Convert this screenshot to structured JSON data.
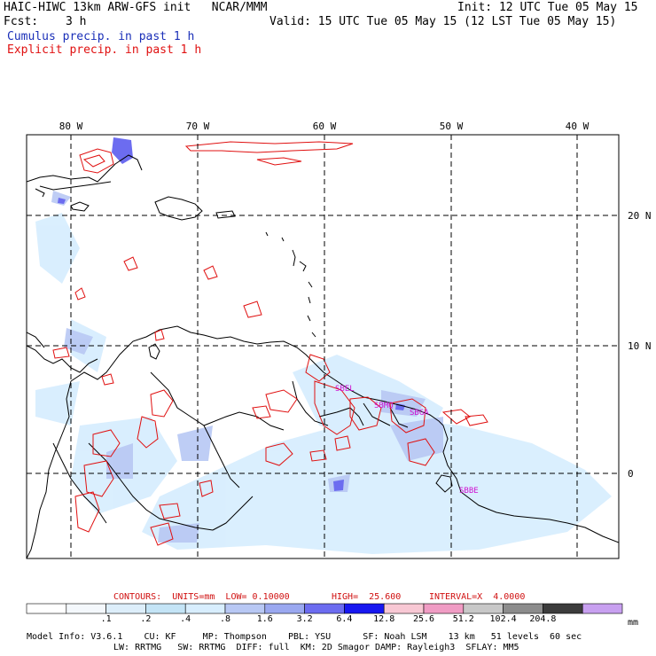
{
  "header": {
    "title": "HAIC-HIWC 13km ARW-GFS init   NCAR/MMM",
    "fcst_label": "Fcst:",
    "fcst_value": "3 h",
    "init": "Init: 12 UTC Tue 05 May 15",
    "valid": "Valid: 15 UTC Tue 05 May 15 (12 LST Tue 05 May 15)",
    "legend_cumulus": "Cumulus precip. in past 1 h",
    "legend_explicit": "Explicit precip. in past 1 h"
  },
  "colors": {
    "cumulus": "#1a2fb8",
    "explicit": "#e01010",
    "label": "#d010d0",
    "contour_text": "#d01010"
  },
  "map": {
    "lon_labels": [
      "80 W",
      "70 W",
      "60 W",
      "50 W",
      "40 W"
    ],
    "lat_labels": [
      "20 N",
      "10 N",
      "0"
    ],
    "station_labels": [
      "SBEL",
      "SBMQ",
      "SBGA",
      "SBBE"
    ]
  },
  "contours": {
    "units_text": "CONTOURS:  UNITS=mm  LOW= 0.10000",
    "high_text": "HIGH=  25.600",
    "interval_text": "INTERVAL=X  4.0000"
  },
  "colorbar": {
    "colors": [
      "#ffffff",
      "#f4f8fc",
      "#ddeefa",
      "#c4e4f6",
      "#d8eefe",
      "#b8c8f4",
      "#9aa8f0",
      "#6c6cf0",
      "#1818f0",
      "#f8c8d4",
      "#f09cc4",
      "#c8c8c8",
      "#8c8c8c",
      "#3c3c3c",
      "#c8a0f0"
    ],
    "labels": [
      ".1",
      ".2",
      ".4",
      ".8",
      "1.6",
      "3.2",
      "6.4",
      "12.8",
      "25.6",
      "51.2",
      "102.4",
      "204.8"
    ],
    "unit": "mm"
  },
  "model_info": {
    "line1": "Model Info: V3.6.1    CU: KF     MP: Thompson    PBL: YSU      SF: Noah LSM    13 km   51 levels  60 sec",
    "line2": "LW: RRTMG   SW: RRTMG  DIFF: full  KM: 2D Smagor DAMP: Rayleigh3  SFLAY: MM5"
  }
}
